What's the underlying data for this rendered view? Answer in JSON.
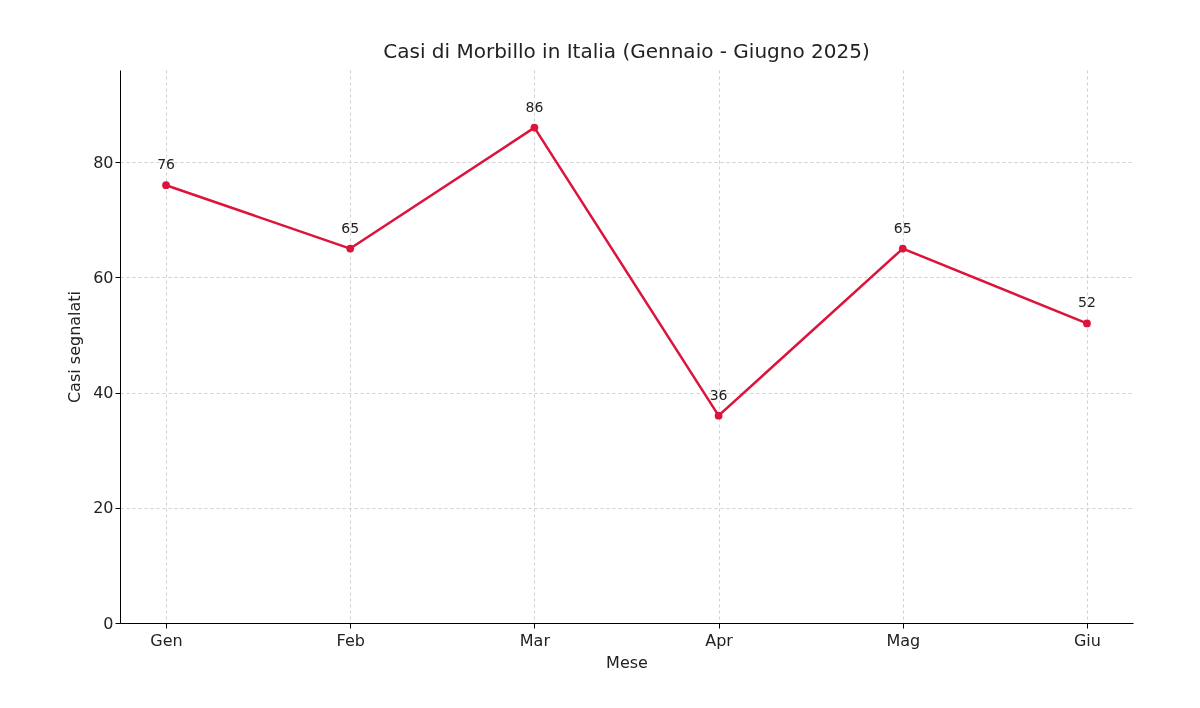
{
  "chart_data": {
    "type": "line",
    "title": "Casi di Morbillo in Italia (Gennaio - Giugno 2025)",
    "xlabel": "Mese",
    "ylabel": "Casi segnalati",
    "categories": [
      "Gen",
      "Feb",
      "Mar",
      "Apr",
      "Mag",
      "Giu"
    ],
    "series": [
      {
        "color": "#dc143c",
        "values": [
          76,
          65,
          86,
          36,
          65,
          52
        ]
      }
    ],
    "ylim": [
      0,
      96
    ],
    "yticks": [
      0,
      20,
      40,
      60,
      80
    ],
    "grid": true,
    "marker": "circle",
    "line_style": "solid",
    "data_labels": true
  }
}
